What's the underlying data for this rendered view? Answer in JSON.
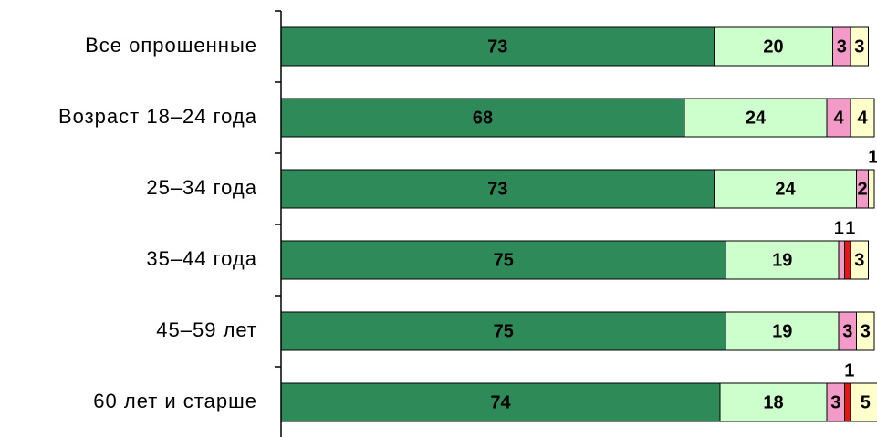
{
  "chart_data": {
    "type": "stacked-barh",
    "categories": [
      "Все опрошенные",
      "Возраст 18–24 года",
      "25–34 года",
      "35–44 года",
      "45–59 лет",
      "60 лет и старше"
    ],
    "series": [
      {
        "color": "#2f8a5a",
        "values": [
          73,
          68,
          73,
          75,
          75,
          74
        ]
      },
      {
        "color": "#ccffcc",
        "values": [
          20,
          24,
          24,
          19,
          19,
          18
        ]
      },
      {
        "color": "#f49ac8",
        "values": [
          3,
          4,
          2,
          1,
          3,
          3
        ]
      },
      {
        "color": "#e01818",
        "values": [
          null,
          null,
          null,
          1,
          null,
          1
        ]
      },
      {
        "color": "#ffffcc",
        "values": [
          3,
          4,
          1,
          3,
          3,
          5
        ]
      }
    ],
    "xlim": [
      0,
      100
    ]
  }
}
